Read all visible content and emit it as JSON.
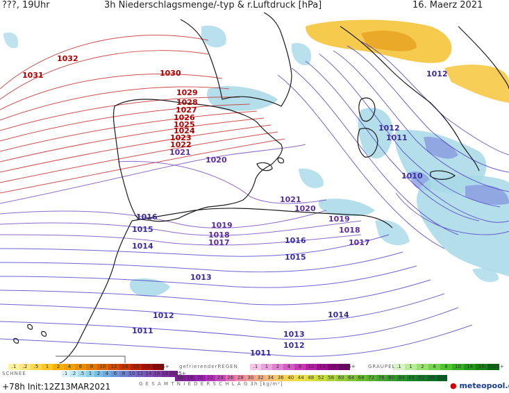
{
  "header": {
    "left": "???, 19Uhr",
    "title": "3h Niederschlagsmenge/-typ & r.Luftdruck [hPa]",
    "date": "16. Maerz 2021"
  },
  "map": {
    "region": "Western Mediterranean / Iberia",
    "isobar_labels": [
      {
        "value": "1032",
        "color": "#b00000"
      },
      {
        "value": "1031",
        "color": "#b00000"
      },
      {
        "value": "1030",
        "color": "#b00000"
      },
      {
        "value": "1029",
        "color": "#b00000"
      },
      {
        "value": "1028",
        "color": "#b00000"
      },
      {
        "value": "1027",
        "color": "#b00000"
      },
      {
        "value": "1026",
        "color": "#b00000"
      },
      {
        "value": "1025",
        "color": "#b00000"
      },
      {
        "value": "1024",
        "color": "#b00000"
      },
      {
        "value": "1023",
        "color": "#b00000"
      },
      {
        "value": "1022",
        "color": "#b00000"
      },
      {
        "value": "1021",
        "color": "#5a2ca0"
      },
      {
        "value": "1020",
        "color": "#5a2ca0"
      },
      {
        "value": "1021",
        "color": "#5a2ca0"
      },
      {
        "value": "1020",
        "color": "#5a2ca0"
      },
      {
        "value": "1019",
        "color": "#5a2ca0"
      },
      {
        "value": "1019",
        "color": "#5a2ca0"
      },
      {
        "value": "1018",
        "color": "#5a2ca0"
      },
      {
        "value": "1018",
        "color": "#5a2ca0"
      },
      {
        "value": "1017",
        "color": "#5a2ca0"
      },
      {
        "value": "1017",
        "color": "#5a2ca0"
      },
      {
        "value": "1016",
        "color": "#3a2ca0"
      },
      {
        "value": "1016",
        "color": "#3a2ca0"
      },
      {
        "value": "1015",
        "color": "#3a2ca0"
      },
      {
        "value": "1015",
        "color": "#3a2ca0"
      },
      {
        "value": "1014",
        "color": "#3a2ca0"
      },
      {
        "value": "1014",
        "color": "#3a2ca0"
      },
      {
        "value": "1013",
        "color": "#3a2ca0"
      },
      {
        "value": "1013",
        "color": "#3a2ca0"
      },
      {
        "value": "1012",
        "color": "#3a2ca0"
      },
      {
        "value": "1012",
        "color": "#3a2ca0"
      },
      {
        "value": "1012",
        "color": "#3a2ca0"
      },
      {
        "value": "1011",
        "color": "#3a2ca0"
      },
      {
        "value": "1011",
        "color": "#3a2ca0"
      },
      {
        "value": "1011",
        "color": "#3a2ca0"
      },
      {
        "value": "1010",
        "color": "#3a2ca0"
      },
      {
        "value": "1012",
        "color": "#3a2ca0"
      }
    ]
  },
  "legend": {
    "rain": {
      "values": [
        ".1",
        ".2",
        ".5",
        "1",
        "2",
        "4",
        "6",
        "8",
        "10",
        "12",
        "14",
        "16",
        "18",
        "2025+"
      ],
      "colors": [
        "#fff3a0",
        "#ffe680",
        "#ffd84d",
        "#ffc820",
        "#f5b000",
        "#f0a000",
        "#e88f00",
        "#e07a00",
        "#d86400",
        "#d04c00",
        "#c83600",
        "#b82000",
        "#a81000",
        "#900000"
      ]
    },
    "freezing": {
      "label": "gefrierenderREGEN",
      "values": [
        ".1",
        "1",
        "2",
        "4",
        "8",
        "10",
        "14",
        "16",
        "2025+"
      ],
      "colors": [
        "#f4c6e8",
        "#eaa4dc",
        "#e080d0",
        "#d45cc4",
        "#c838b6",
        "#b820a4",
        "#a00c90",
        "#88007a",
        "#700066"
      ]
    },
    "graupel": {
      "label": "GRAUPEL",
      "values": [
        ".1",
        "1",
        "2",
        "4",
        "8",
        "10",
        "14",
        "16",
        "2025+"
      ],
      "colors": [
        "#d8f5c8",
        "#b8ec9a",
        "#96e070",
        "#72d44a",
        "#50c430",
        "#36b020",
        "#22981a",
        "#148214",
        "#0a6a10"
      ]
    },
    "snow": {
      "label": "SCHNEE",
      "values": [
        ".1",
        ".2",
        ".5",
        "1",
        "2",
        "4",
        "6",
        "8",
        "10",
        "12",
        "14",
        "16",
        "18",
        "2025+"
      ],
      "colors": [
        "#dff4fa",
        "#c4ecf6",
        "#a8e0f0",
        "#8cd0ea",
        "#78bee4",
        "#6eaade",
        "#6a96d6",
        "#6c82ce",
        "#7070c6",
        "#7460be",
        "#7850b4",
        "#7a40aa",
        "#7c309e",
        "#7a2090"
      ]
    },
    "total": {
      "label": "G E S A M T N I E D E R S C H L A G   3h   [kg/m²]",
      "values": [
        "16",
        "18",
        "20",
        "22",
        "24",
        "26",
        "28",
        "30",
        "32",
        "34",
        "36",
        "40",
        "44",
        "48",
        "52",
        "56",
        "60",
        "64",
        "68",
        "72",
        "76",
        "80",
        "84",
        "88",
        "92",
        "96",
        "100"
      ],
      "colors": [
        "#7a2090",
        "#8a1aa0",
        "#9a20b0",
        "#b030b8",
        "#c848b8",
        "#e070b0",
        "#e88aa0",
        "#f0a090",
        "#f4b080",
        "#f6c070",
        "#f8d060",
        "#f4d850",
        "#ece040",
        "#dce03c",
        "#c8dc3a",
        "#b0d438",
        "#96cc36",
        "#80c434",
        "#6cbc32",
        "#58b030",
        "#46a42e",
        "#369a2c",
        "#288e2a",
        "#1c8228",
        "#127826",
        "#0a6e24",
        "#046420"
      ]
    }
  },
  "footer": {
    "run": "+78h  Init:12Z13MAR2021",
    "brand": "meteopool.org"
  },
  "colors": {
    "isobar_high": "#c00000",
    "isobar_mid": "#6a3cb0",
    "isobar_low": "#4a3cc0",
    "coast": "#222222",
    "precip_snow": "#a8d8e8",
    "precip_rain": "#f4c020"
  }
}
